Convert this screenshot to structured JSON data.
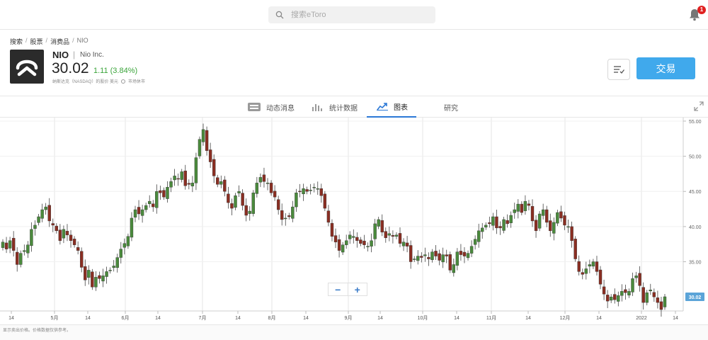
{
  "search": {
    "placeholder": "搜索eToro"
  },
  "notifications": {
    "count": "1"
  },
  "breadcrumb": [
    "搜索",
    "股票",
    "消费品",
    "NIO"
  ],
  "instrument": {
    "symbol": "NIO",
    "name": "Nio Inc.",
    "price": "30.02",
    "change": "1.11 (3.84%)",
    "market_note": "纳斯达克（NASDAQ）的股价 美元",
    "market_status": "市场休市"
  },
  "actions": {
    "trade_label": "交易"
  },
  "tabs": [
    {
      "label": "动态消息",
      "icon": "news-icon"
    },
    {
      "label": "统计数据",
      "icon": "stats-icon"
    },
    {
      "label": "图表",
      "icon": "chart-icon",
      "active": true
    },
    {
      "label": "研究",
      "icon": ""
    }
  ],
  "zoom": {
    "minus": "−",
    "plus": "+"
  },
  "footer": {
    "note": "显示卖出价格。价格数据仅供参考。"
  },
  "colors": {
    "up": "#4a8a3c",
    "down": "#8a2e22",
    "accent": "#40a9ec",
    "current_price": "#5ba4d8"
  },
  "chart_data": {
    "type": "candlestick",
    "x_tick_labels": [
      "14",
      "5月",
      "14",
      "6月",
      "14",
      "7月",
      "14",
      "8月",
      "14",
      "9月",
      "14",
      "10月",
      "14",
      "11月",
      "14",
      "12月",
      "14",
      "2022",
      "14"
    ],
    "y_tick_labels": [
      "55.00",
      "50.00",
      "45.00",
      "40.00",
      "35.00"
    ],
    "ylim": [
      28,
      55.5
    ],
    "current_price_label": "30.02",
    "grid": true,
    "series_close": [
      37.8,
      36.8,
      38.0,
      36.6,
      34.6,
      36.2,
      36.6,
      37.4,
      39.6,
      40.2,
      41.4,
      42.4,
      42.8,
      40.8,
      40.2,
      39.4,
      38.0,
      39.6,
      38.8,
      38.0,
      37.4,
      36.6,
      34.2,
      32.4,
      33.8,
      31.4,
      32.8,
      32.6,
      33.0,
      33.6,
      33.8,
      34.4,
      35.6,
      36.8,
      37.6,
      38.6,
      41.2,
      42.4,
      41.8,
      42.4,
      43.0,
      43.6,
      42.8,
      45.0,
      44.8,
      44.2,
      45.6,
      46.4,
      47.2,
      46.8,
      47.8,
      45.8,
      46.0,
      46.2,
      49.8,
      52.4,
      53.8,
      50.8,
      49.2,
      47.2,
      46.0,
      46.4,
      45.0,
      43.4,
      42.6,
      44.4,
      45.0,
      43.0,
      41.6,
      42.2,
      44.8,
      46.2,
      47.0,
      46.4,
      46.2,
      44.8,
      44.2,
      42.4,
      41.0,
      41.2,
      41.4,
      42.8,
      44.8,
      45.0,
      45.4,
      45.0,
      45.2,
      45.6,
      45.4,
      44.4,
      42.6,
      40.6,
      38.6,
      37.8,
      36.6,
      37.4,
      38.0,
      38.8,
      38.6,
      38.0,
      37.6,
      37.4,
      37.2,
      38.0,
      40.4,
      41.0,
      39.2,
      38.4,
      39.0,
      38.6,
      38.8,
      37.6,
      37.8,
      37.2,
      35.0,
      35.4,
      35.8,
      35.6,
      36.0,
      35.4,
      36.4,
      35.8,
      35.2,
      36.0,
      35.8,
      33.8,
      34.6,
      36.4,
      36.0,
      35.8,
      36.2,
      37.2,
      38.2,
      39.4,
      39.8,
      40.2,
      40.4,
      41.4,
      39.8,
      39.8,
      41.0,
      40.4,
      41.6,
      42.4,
      43.2,
      42.0,
      43.6,
      43.0,
      40.8,
      39.4,
      41.8,
      42.4,
      40.6,
      39.4,
      40.6,
      42.0,
      41.2,
      40.2,
      40.0,
      38.0,
      35.4,
      33.6,
      33.2,
      34.0,
      34.6,
      35.0,
      33.6,
      31.8,
      30.4,
      29.4,
      30.0,
      29.6,
      30.2,
      30.8,
      30.6,
      30.8,
      32.6,
      33.0,
      31.6,
      29.2,
      30.6,
      31.0,
      30.0,
      29.2,
      28.2,
      30.02
    ]
  }
}
